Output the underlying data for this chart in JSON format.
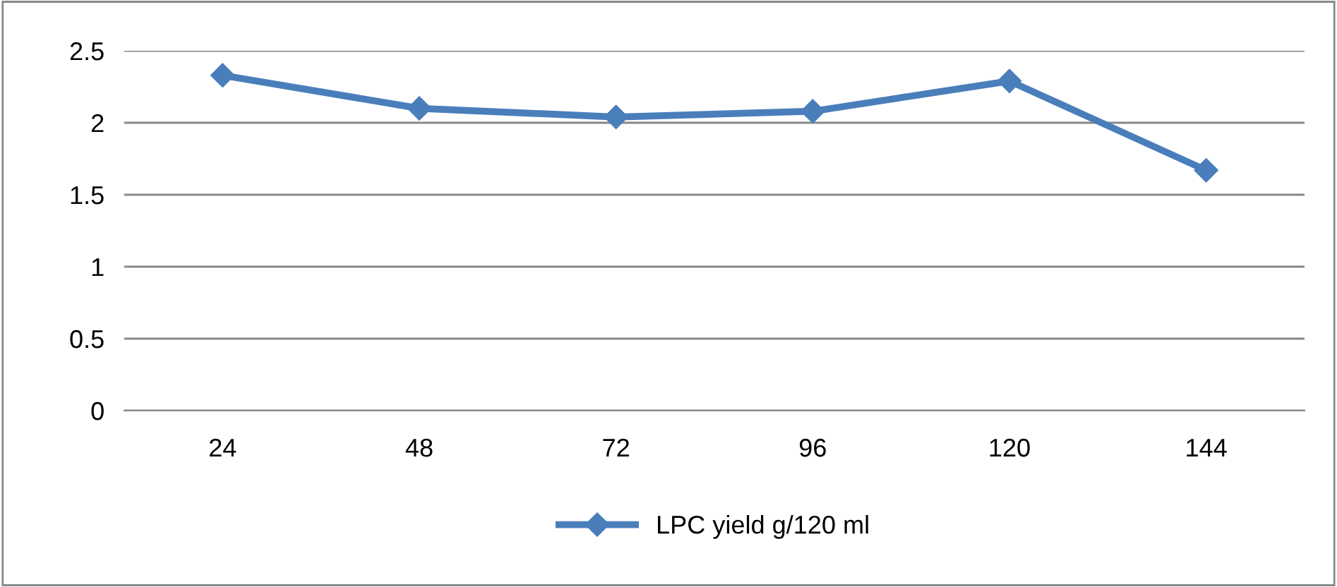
{
  "chart_data": {
    "type": "line",
    "categories": [
      "24",
      "48",
      "72",
      "96",
      "120",
      "144"
    ],
    "series": [
      {
        "name": "LPC yield g/120 ml",
        "color": "#4a7ebb",
        "values": [
          2.33,
          2.1,
          2.04,
          2.08,
          2.29,
          1.67
        ]
      }
    ],
    "ylim": [
      0,
      2.5
    ],
    "yticks": [
      0,
      0.5,
      1,
      1.5,
      2,
      2.5
    ],
    "grid": "y",
    "legend": "bottom",
    "marker": "diamond",
    "line_style": "solid"
  }
}
